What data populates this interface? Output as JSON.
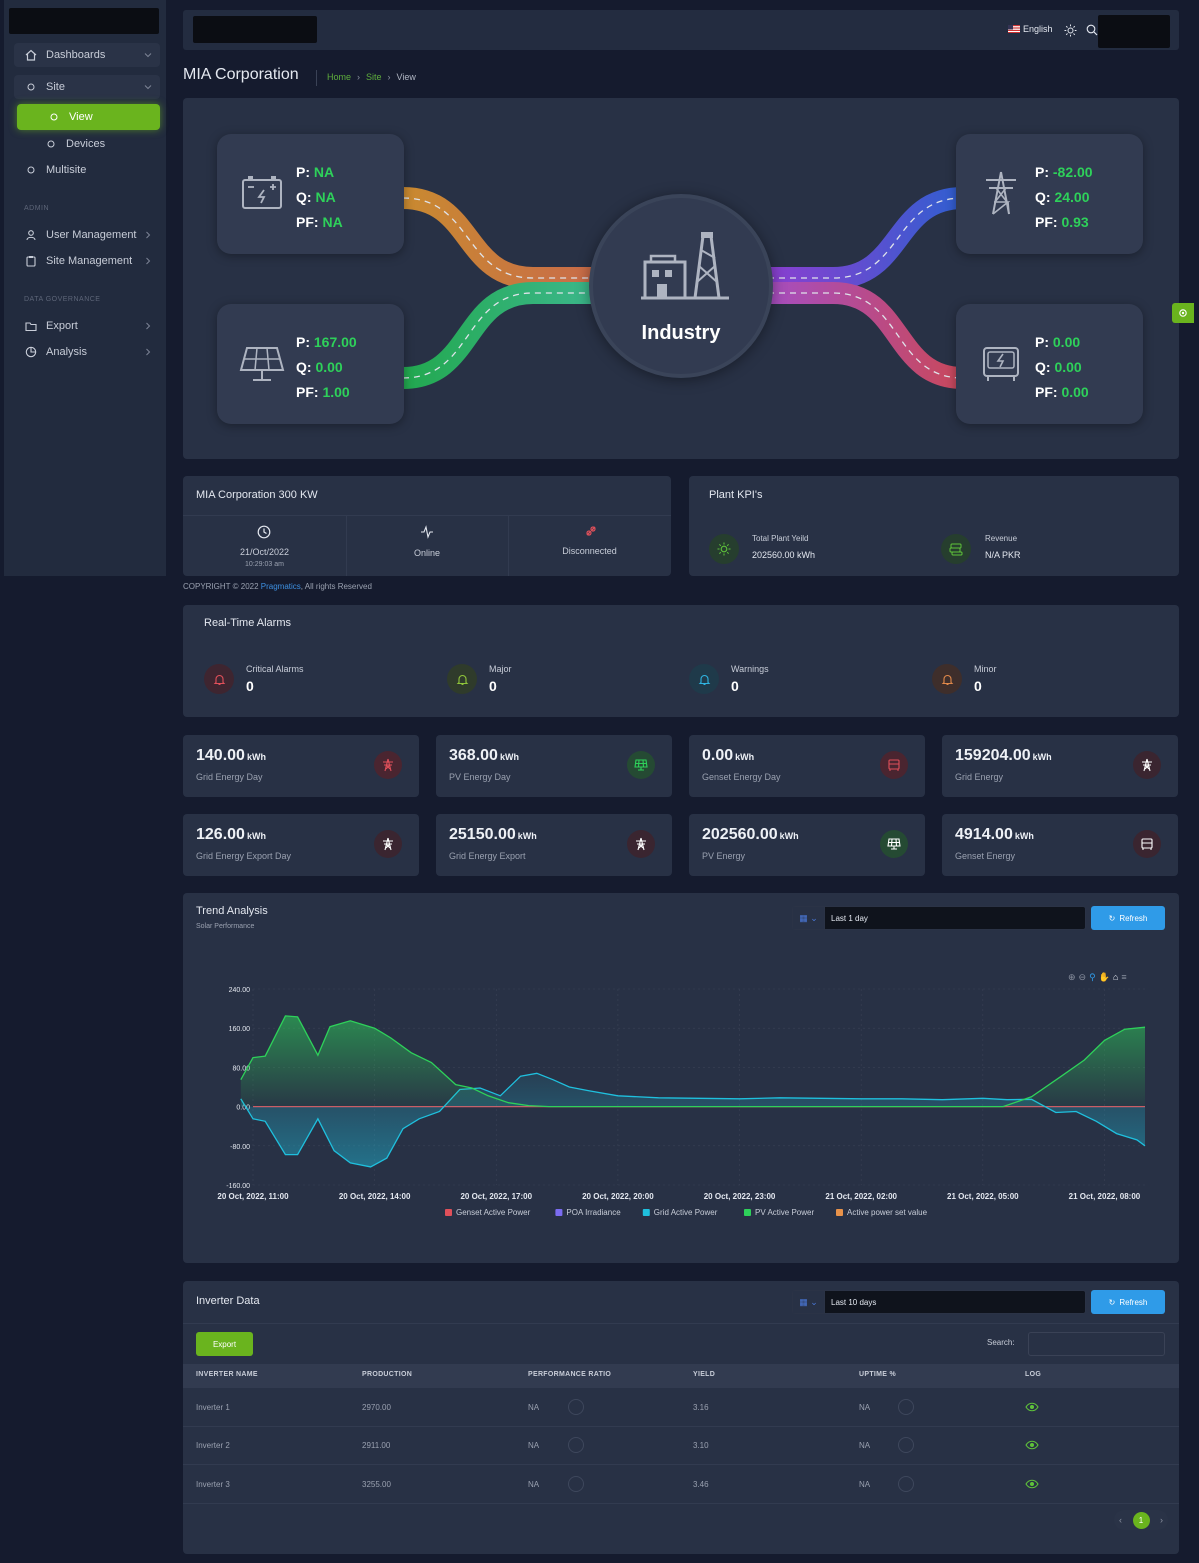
{
  "sidebar": {
    "items": [
      {
        "label": "Dashboards"
      },
      {
        "label": "Site"
      },
      {
        "label": "View"
      },
      {
        "label": "Devices"
      },
      {
        "label": "Multisite"
      },
      {
        "label": "User Management"
      },
      {
        "label": "Site Management"
      },
      {
        "label": "Export"
      },
      {
        "label": "Analysis"
      }
    ],
    "sections": {
      "admin": "ADMIN",
      "data_governance": "DATA GOVERNANCE"
    }
  },
  "topbar": {
    "language": "English"
  },
  "header": {
    "title": "MIA Corporation",
    "breadcrumb": [
      "Home",
      "Site",
      "View"
    ]
  },
  "flow": {
    "hub_label": "Industry",
    "battery": {
      "p_label": "P:",
      "q_label": "Q:",
      "pf_label": "PF:",
      "p": "NA",
      "q": "NA",
      "pf": "NA"
    },
    "solar": {
      "p_label": "P:",
      "q_label": "Q:",
      "pf_label": "PF:",
      "p": "167.00",
      "q": "0.00",
      "pf": "1.00"
    },
    "grid": {
      "p_label": "P:",
      "q_label": "Q:",
      "pf_label": "PF:",
      "p": "-82.00",
      "q": "24.00",
      "pf": "0.93"
    },
    "genset": {
      "p_label": "P:",
      "q_label": "Q:",
      "pf_label": "PF:",
      "p": "0.00",
      "q": "0.00",
      "pf": "0.00"
    },
    "colors": {
      "battery_line": "#c98a30",
      "solar_line": "#2fb866",
      "grid_line": "#3c5fd0",
      "genset_line": "#c9485a"
    }
  },
  "site_info": {
    "title": "MIA Corporation 300 KW",
    "date": "21/Oct/2022",
    "time": "10:29:03 am",
    "status": "Online",
    "connection": "Disconnected"
  },
  "plant_kpis": {
    "title": "Plant KPI's",
    "yield_label": "Total Plant Yeild",
    "yield_value": "202560.00 kWh",
    "revenue_label": "Revenue",
    "revenue_value": "N/A PKR"
  },
  "footer": {
    "prefix": "COPYRIGHT © 2022 ",
    "link": "Pragmatics",
    "suffix": ", All rights Reserved"
  },
  "alarms": {
    "title": "Real-Time Alarms",
    "items": [
      {
        "label": "Critical Alarms",
        "count": "0",
        "color": "#e0505a"
      },
      {
        "label": "Major",
        "count": "0",
        "color": "#8fc43a"
      },
      {
        "label": "Warnings",
        "count": "0",
        "color": "#2fb3e0"
      },
      {
        "label": "Minor",
        "count": "0",
        "color": "#e0884a"
      }
    ]
  },
  "kpis": [
    {
      "value": "140.00",
      "unit": "kWh",
      "label": "Grid Energy Day",
      "color": "#e0505a"
    },
    {
      "value": "368.00",
      "unit": "kWh",
      "label": "PV Energy Day",
      "color": "#2ed15a"
    },
    {
      "value": "0.00",
      "unit": "kWh",
      "label": "Genset Energy Day",
      "color": "#e0505a"
    },
    {
      "value": "159204.00",
      "unit": "kWh",
      "label": "Grid Energy",
      "color": "#ffffff"
    },
    {
      "value": "126.00",
      "unit": "kWh",
      "label": "Grid Energy Export Day",
      "color": "#ffffff"
    },
    {
      "value": "25150.00",
      "unit": "kWh",
      "label": "Grid Energy Export",
      "color": "#ffffff"
    },
    {
      "value": "202560.00",
      "unit": "kWh",
      "label": "PV Energy",
      "color": "#ffffff"
    },
    {
      "value": "4914.00",
      "unit": "kWh",
      "label": "Genset Energy",
      "color": "#ffffff"
    }
  ],
  "trend": {
    "title": "Trend Analysis",
    "subtitle": "Solar Performance",
    "range": "Last 1 day",
    "refresh": "Refresh"
  },
  "chart_data": {
    "type": "area",
    "ylim": [
      -160,
      240
    ],
    "yticks": [
      "240.00",
      "160.00",
      "80.00",
      "0.00",
      "-80.00",
      "-160.00"
    ],
    "xticks": [
      "20 Oct, 2022, 11:00",
      "20 Oct, 2022, 14:00",
      "20 Oct, 2022, 17:00",
      "20 Oct, 2022, 20:00",
      "20 Oct, 2022, 23:00",
      "21 Oct, 2022, 02:00",
      "21 Oct, 2022, 05:00",
      "21 Oct, 2022, 08:00"
    ],
    "x_hours": [
      0,
      22
    ],
    "series": [
      {
        "name": "Genset Active Power",
        "color": "#e0505a",
        "x": [
          0,
          22
        ],
        "values": [
          0,
          0
        ]
      },
      {
        "name": "POA Irradiance",
        "color": "#7b6cf0",
        "x": [],
        "values": []
      },
      {
        "name": "Grid Active Power",
        "color": "#1fc0de",
        "x": [
          -0.3,
          0,
          0.3,
          0.8,
          1.1,
          1.6,
          2.0,
          2.4,
          2.9,
          3.3,
          3.7,
          4.1,
          4.6,
          5.1,
          5.6,
          6.1,
          6.6,
          7.0,
          7.4,
          7.8,
          8.3,
          9.0,
          10,
          11,
          12,
          13,
          14,
          15,
          16,
          17,
          18,
          18.6,
          19.2,
          19.8,
          20.3,
          20.8,
          21.3,
          21.8,
          22.0
        ],
        "values": [
          16,
          -25,
          -30,
          -98,
          -98,
          -25,
          -90,
          -115,
          -123,
          -105,
          -45,
          -25,
          -10,
          35,
          38,
          22,
          62,
          68,
          55,
          40,
          32,
          22,
          18,
          17,
          16,
          18,
          17,
          16,
          16,
          14,
          17,
          14,
          15,
          -12,
          -10,
          -30,
          -55,
          -68,
          -80
        ]
      },
      {
        "name": "PV Active Power",
        "color": "#2ed15a",
        "x": [
          -0.3,
          0,
          0.3,
          0.8,
          1.1,
          1.6,
          1.9,
          2.4,
          3.0,
          3.4,
          3.9,
          4.4,
          5.0,
          5.4,
          5.8,
          6.3,
          6.8,
          7.3,
          8.0,
          10,
          14,
          18.5,
          19.2,
          19.9,
          20.5,
          21.0,
          21.5,
          22.0
        ],
        "values": [
          55,
          100,
          103,
          185,
          183,
          105,
          163,
          175,
          160,
          140,
          110,
          90,
          45,
          38,
          22,
          8,
          2,
          0,
          0,
          0,
          0,
          0,
          20,
          60,
          95,
          135,
          158,
          162
        ]
      },
      {
        "name": "Active power set value",
        "color": "#e8924a",
        "x": [],
        "values": []
      }
    ]
  },
  "inverter": {
    "title": "Inverter Data",
    "range": "Last 10 days",
    "refresh": "Refresh",
    "export": "Export",
    "search_label": "Search:",
    "columns": [
      "INVERTER NAME",
      "PRODUCTION",
      "PERFORMANCE RATIO",
      "YIELD",
      "UPTIME %",
      "LOG"
    ],
    "rows": [
      {
        "name": "Inverter 1",
        "production": "2970.00",
        "pr": "NA",
        "yield": "3.16",
        "uptime": "NA"
      },
      {
        "name": "Inverter 2",
        "production": "2911.00",
        "pr": "NA",
        "yield": "3.10",
        "uptime": "NA"
      },
      {
        "name": "Inverter 3",
        "production": "3255.00",
        "pr": "NA",
        "yield": "3.46",
        "uptime": "NA"
      }
    ],
    "page": "1",
    "prev": "‹",
    "next": "›"
  }
}
